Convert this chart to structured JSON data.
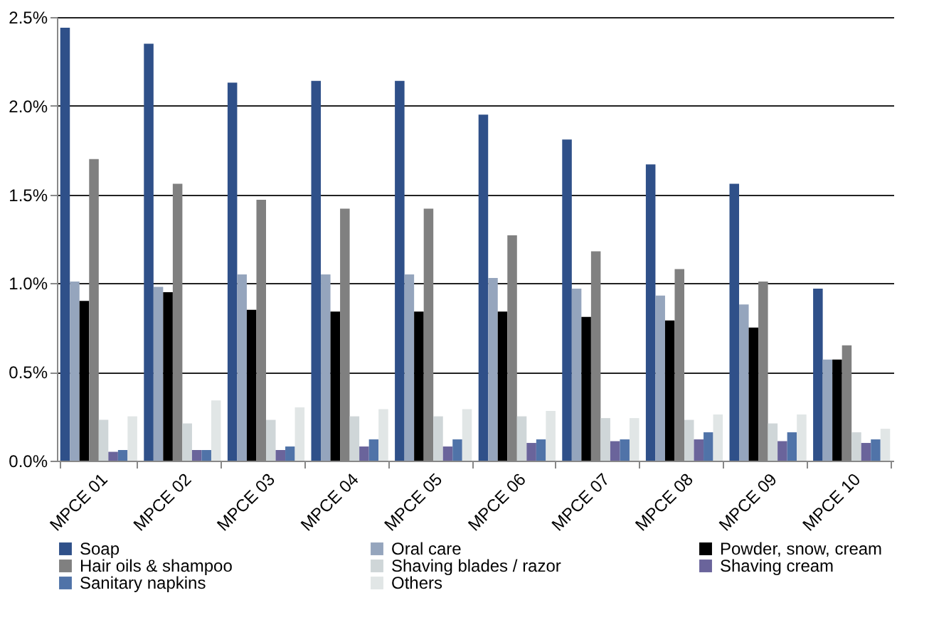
{
  "chart_data": {
    "type": "bar",
    "categories": [
      "MPCE 01",
      "MPCE 02",
      "MPCE 03",
      "MPCE 04",
      "MPCE 05",
      "MPCE 06",
      "MPCE 07",
      "MPCE 08",
      "MPCE 09",
      "MPCE 10"
    ],
    "series": [
      {
        "name": "Soap",
        "color": "#2f5089",
        "values": [
          2.44,
          2.35,
          2.13,
          2.14,
          2.14,
          1.95,
          1.81,
          1.67,
          1.56,
          0.97
        ]
      },
      {
        "name": "Oral care",
        "color": "#95a5bd",
        "values": [
          1.01,
          0.98,
          1.05,
          1.05,
          1.05,
          1.03,
          0.97,
          0.93,
          0.88,
          0.57
        ]
      },
      {
        "name": "Powder, snow, cream",
        "color": "#000000",
        "values": [
          0.9,
          0.95,
          0.85,
          0.84,
          0.84,
          0.84,
          0.81,
          0.79,
          0.75,
          0.57
        ]
      },
      {
        "name": "Hair oils & shampoo",
        "color": "#808080",
        "values": [
          1.7,
          1.56,
          1.47,
          1.42,
          1.42,
          1.27,
          1.18,
          1.08,
          1.01,
          0.65
        ]
      },
      {
        "name": "Shaving blades / razor",
        "color": "#cfd6d8",
        "values": [
          0.23,
          0.21,
          0.23,
          0.25,
          0.25,
          0.25,
          0.24,
          0.23,
          0.21,
          0.16
        ]
      },
      {
        "name": "Shaving cream",
        "color": "#6a649b",
        "values": [
          0.05,
          0.06,
          0.06,
          0.08,
          0.08,
          0.1,
          0.11,
          0.12,
          0.11,
          0.1
        ]
      },
      {
        "name": "Sanitary napkins",
        "color": "#5073a8",
        "values": [
          0.06,
          0.06,
          0.08,
          0.12,
          0.12,
          0.12,
          0.12,
          0.16,
          0.16,
          0.12
        ]
      },
      {
        "name": "Others",
        "color": "#e1e6e6",
        "values": [
          0.25,
          0.34,
          0.3,
          0.29,
          0.29,
          0.28,
          0.24,
          0.26,
          0.26,
          0.18
        ]
      }
    ],
    "ylim": [
      0,
      2.5
    ],
    "yticks": [
      {
        "value": 0,
        "label": "0.0%"
      },
      {
        "value": 0.5,
        "label": "0.5%"
      },
      {
        "value": 1,
        "label": "1.0%"
      },
      {
        "value": 1.5,
        "label": "1.5%"
      },
      {
        "value": 2,
        "label": "2.0%"
      },
      {
        "value": 2.5,
        "label": "2.5%"
      }
    ],
    "grid": "y",
    "legend": "bottom"
  }
}
